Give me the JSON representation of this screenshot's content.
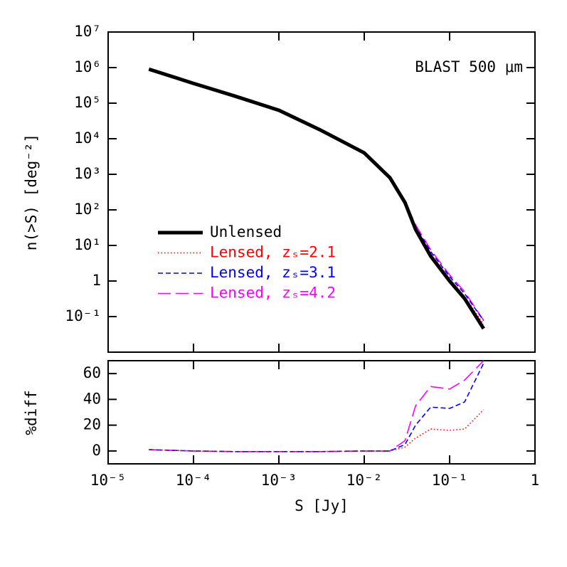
{
  "chart_data": [
    {
      "type": "line",
      "log_x": true,
      "log_y": true,
      "ylabel": "n(>S) [deg⁻²]",
      "annotation": "BLAST 500 μm",
      "legend": "center-left",
      "xlim": [
        1e-05,
        1
      ],
      "ylim": [
        0.01,
        10000000
      ],
      "yticks": [
        {
          "value": 0.1,
          "label": "10⁻¹"
        },
        1,
        {
          "value": 10,
          "label": "10¹"
        },
        {
          "value": 100,
          "label": "10²"
        },
        {
          "value": 1000,
          "label": "10³"
        },
        {
          "value": 10000,
          "label": "10⁴"
        },
        {
          "value": 100000,
          "label": "10⁵"
        },
        {
          "value": 1000000,
          "label": "10⁶"
        },
        {
          "value": 10000000,
          "label": "10⁷"
        }
      ],
      "x": [
        3e-05,
        0.0001,
        0.0003,
        0.001,
        0.003,
        0.01,
        0.02,
        0.03,
        0.04,
        0.06,
        0.1,
        0.15,
        0.25
      ],
      "series": [
        {
          "name": "Unlensed",
          "color": "#000000",
          "style": "solid",
          "values": [
            900000,
            360000,
            160000,
            63000,
            18000,
            4000,
            800,
            160,
            28,
            5,
            1,
            0.32,
            0.046
          ]
        },
        {
          "name": "Lensed, zₛ=2.1",
          "color": "#ff0000",
          "style": "dotted",
          "values": [
            900000,
            360000,
            160000,
            63000,
            18000,
            4000,
            800,
            165,
            30.8,
            5.85,
            1.16,
            0.37,
            0.061
          ]
        },
        {
          "name": "Lensed, zₛ=3.1",
          "color": "#0000ff",
          "style": "dashed",
          "values": [
            900000,
            360000,
            160000,
            63000,
            18000,
            4000,
            800,
            168,
            33.6,
            6.7,
            1.33,
            0.44,
            0.077
          ]
        },
        {
          "name": "Lensed, zₛ=4.2",
          "color": "#ff00ff",
          "style": "longdash",
          "values": [
            900000,
            360000,
            160000,
            63000,
            18000,
            4000,
            800,
            173,
            37.8,
            7.5,
            1.48,
            0.5,
            0.078
          ]
        }
      ]
    },
    {
      "type": "line",
      "log_x": true,
      "log_y": false,
      "ylabel": "%diff",
      "xlabel": "S [Jy]",
      "xlim": [
        1e-05,
        1
      ],
      "ylim": [
        -10,
        70
      ],
      "xticks": [
        {
          "value": 1e-05,
          "label": "10⁻⁵"
        },
        {
          "value": 0.0001,
          "label": "10⁻⁴"
        },
        {
          "value": 0.001,
          "label": "10⁻³"
        },
        {
          "value": 0.01,
          "label": "10⁻²"
        },
        {
          "value": 0.1,
          "label": "10⁻¹"
        },
        1
      ],
      "yticks": [
        0,
        20,
        40,
        60
      ],
      "x": [
        3e-05,
        0.0001,
        0.0003,
        0.001,
        0.003,
        0.01,
        0.02,
        0.03,
        0.04,
        0.06,
        0.1,
        0.15,
        0.25
      ],
      "series": [
        {
          "color": "#ff0000",
          "style": "dotted",
          "values": [
            1,
            0,
            -0.5,
            -0.5,
            -0.5,
            0,
            0,
            3,
            10,
            17,
            16,
            17,
            32
          ]
        },
        {
          "color": "#0000ff",
          "style": "dashed",
          "values": [
            1,
            0,
            -0.5,
            -0.5,
            -0.5,
            0,
            0,
            5,
            20,
            34,
            33,
            38,
            68
          ]
        },
        {
          "color": "#ff00ff",
          "style": "longdash",
          "values": [
            1,
            0,
            -0.5,
            -0.5,
            -0.5,
            0,
            0,
            8,
            35,
            50,
            48,
            55,
            70
          ]
        }
      ]
    }
  ]
}
